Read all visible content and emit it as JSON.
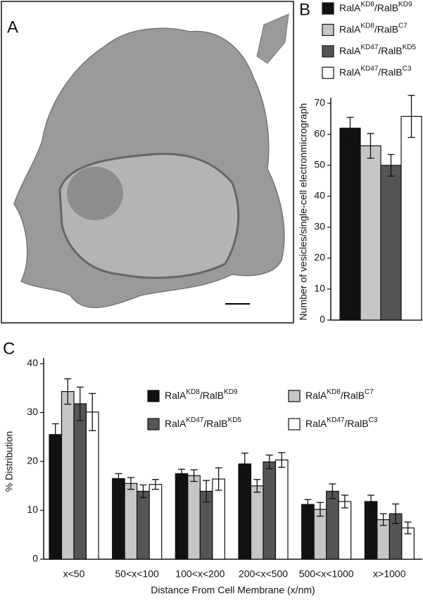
{
  "image_panel": {
    "label": "A"
  },
  "chart_data": [
    {
      "type": "bar",
      "panel_label": "B",
      "ylabel": "Number of vesicles/single-cell electronmicrograph",
      "categories": [
        null
      ],
      "series": [
        {
          "name": "RalAKD8/RalBKD9",
          "color": "#111111",
          "values": [
            62
          ],
          "errors": [
            3.5
          ]
        },
        {
          "name": "RalAKD8/RalBC7",
          "color": "#c6c6c6",
          "values": [
            56.3
          ],
          "errors": [
            4
          ]
        },
        {
          "name": "RalAKD47/RalBKD5",
          "color": "#555555",
          "values": [
            50
          ],
          "errors": [
            3.5
          ]
        },
        {
          "name": "RalAKD47/RalBC3",
          "color": "#ffffff",
          "values": [
            65.8
          ],
          "errors": [
            6.8
          ]
        }
      ],
      "ylim": [
        0,
        70
      ],
      "yticks": [
        0,
        10,
        20,
        30,
        40,
        50,
        60,
        70
      ],
      "legend": "outside top"
    },
    {
      "type": "bar",
      "panel_label": "C",
      "xlabel": "Distance From Cell Membrane (x/nm)",
      "ylabel": "% Distribution",
      "categories": [
        "x<50",
        "50<x<100",
        "100<x<200",
        "200<x<500",
        "500<x<1000",
        "x>1000"
      ],
      "series": [
        {
          "name": "RalAKD8/RalBKD9",
          "color": "#111111",
          "values": [
            25.5,
            16.5,
            17.5,
            19.5,
            11.2,
            11.8
          ],
          "errors": [
            2.2,
            1,
            0.9,
            2.2,
            1,
            1.3
          ]
        },
        {
          "name": "RalAKD8/RalBC7",
          "color": "#c6c6c6",
          "values": [
            34.3,
            15.5,
            17.1,
            15,
            10.2,
            8.1
          ],
          "errors": [
            2.6,
            1.2,
            1.2,
            1.3,
            1.4,
            1.2
          ]
        },
        {
          "name": "RalAKD47/RalBKD5",
          "color": "#555555",
          "values": [
            31.8,
            13.9,
            13.9,
            19.9,
            13.9,
            9.3
          ],
          "errors": [
            3.4,
            1.3,
            2.2,
            1.4,
            1.5,
            2
          ]
        },
        {
          "name": "RalAKD47/RalBC3",
          "color": "#ffffff",
          "values": [
            30.1,
            15.3,
            16.4,
            20.3,
            11.8,
            6.4
          ],
          "errors": [
            3.8,
            1,
            2.3,
            1.5,
            1.3,
            1.2
          ]
        }
      ],
      "ylim": [
        0,
        40
      ],
      "yticks": [
        0,
        10,
        20,
        30,
        40
      ],
      "legend": "inside"
    }
  ]
}
